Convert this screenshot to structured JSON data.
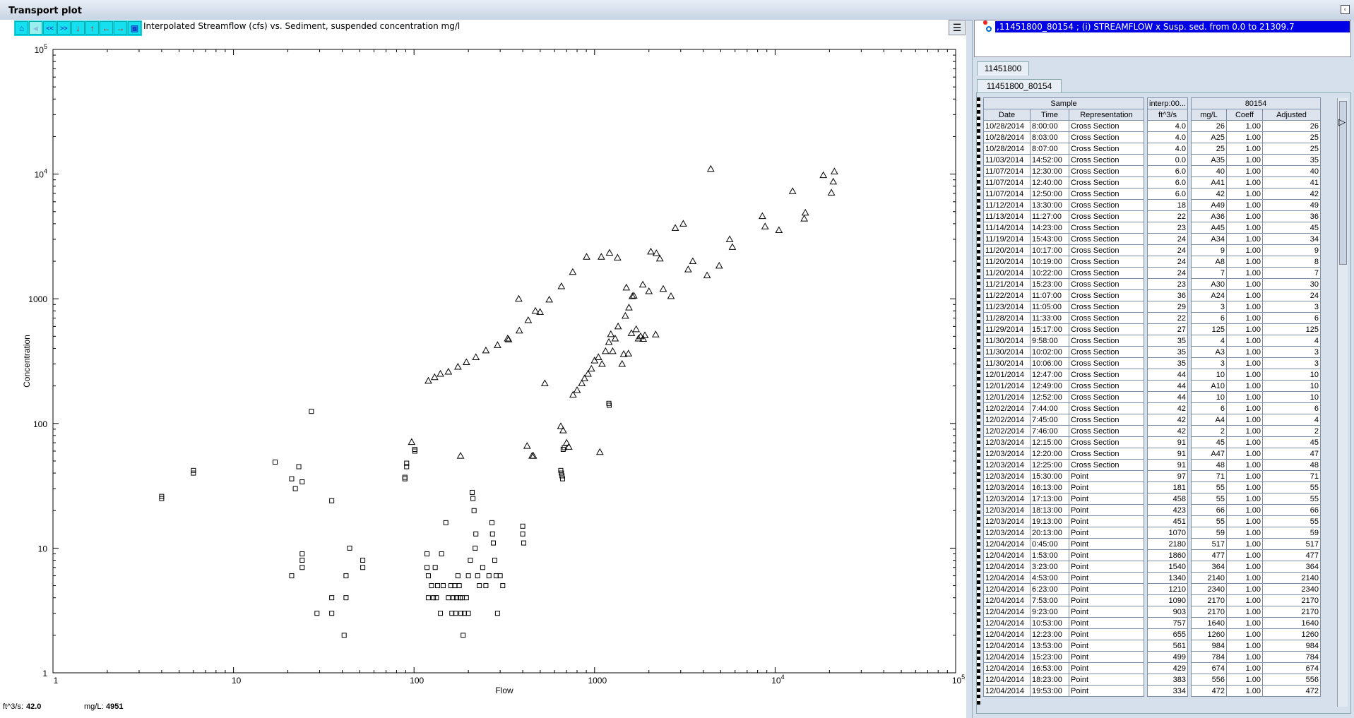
{
  "window": {
    "title": "Transport plot"
  },
  "toolbar": {
    "icons": [
      "home-icon",
      "back-icon",
      "first-page-icon",
      "last-page-icon",
      "down-arrow-icon",
      "up-arrow-icon",
      "left-arrow-icon",
      "right-arrow-icon",
      "save-icon"
    ],
    "labels": [
      "⌂",
      "◂",
      "<<",
      ">>",
      "↓",
      "↑",
      "←",
      "→",
      "▣"
    ]
  },
  "plot": {
    "title": "Interpolated Streamflow (cfs) vs. Sediment, suspended concentration mg/l"
  },
  "readout": {
    "x_label": "ft^3/s:",
    "x_value": "42.0",
    "y_label": "mg/L:",
    "y_value": "4951"
  },
  "series_list": {
    "selected": ",11451800_80154 ; (i) STREAMFLOW x Susp. sed. from 0.0 to 21309.7"
  },
  "tabs": {
    "station": "11451800",
    "series": "11451800_80154"
  },
  "table": {
    "group_headers": [
      "Sample",
      "interp:00...",
      "80154"
    ],
    "unit_headers": [
      "Date",
      "Time",
      "Representation",
      "ft^3/s",
      "mg/L",
      "Coeff",
      "Adjusted"
    ],
    "rows": [
      [
        "10/28/2014",
        "8:00:00",
        "Cross Section",
        "4.0",
        "26",
        "1.00",
        "26"
      ],
      [
        "10/28/2014",
        "8:03:00",
        "Cross Section",
        "4.0",
        "A25",
        "1.00",
        "25"
      ],
      [
        "10/28/2014",
        "8:07:00",
        "Cross Section",
        "4.0",
        "25",
        "1.00",
        "25"
      ],
      [
        "11/03/2014",
        "14:52:00",
        "Cross Section",
        "0.0",
        "A35",
        "1.00",
        "35"
      ],
      [
        "11/07/2014",
        "12:30:00",
        "Cross Section",
        "6.0",
        "40",
        "1.00",
        "40"
      ],
      [
        "11/07/2014",
        "12:40:00",
        "Cross Section",
        "6.0",
        "A41",
        "1.00",
        "41"
      ],
      [
        "11/07/2014",
        "12:50:00",
        "Cross Section",
        "6.0",
        "42",
        "1.00",
        "42"
      ],
      [
        "11/12/2014",
        "13:30:00",
        "Cross Section",
        "18",
        "A49",
        "1.00",
        "49"
      ],
      [
        "11/13/2014",
        "11:27:00",
        "Cross Section",
        "22",
        "A36",
        "1.00",
        "36"
      ],
      [
        "11/14/2014",
        "14:23:00",
        "Cross Section",
        "23",
        "A45",
        "1.00",
        "45"
      ],
      [
        "11/19/2014",
        "15:43:00",
        "Cross Section",
        "24",
        "A34",
        "1.00",
        "34"
      ],
      [
        "11/20/2014",
        "10:17:00",
        "Cross Section",
        "24",
        "9",
        "1.00",
        "9"
      ],
      [
        "11/20/2014",
        "10:19:00",
        "Cross Section",
        "24",
        "A8",
        "1.00",
        "8"
      ],
      [
        "11/20/2014",
        "10:22:00",
        "Cross Section",
        "24",
        "7",
        "1.00",
        "7"
      ],
      [
        "11/21/2014",
        "15:23:00",
        "Cross Section",
        "23",
        "A30",
        "1.00",
        "30"
      ],
      [
        "11/22/2014",
        "11:07:00",
        "Cross Section",
        "36",
        "A24",
        "1.00",
        "24"
      ],
      [
        "11/23/2014",
        "11:05:00",
        "Cross Section",
        "29",
        "3",
        "1.00",
        "3"
      ],
      [
        "11/28/2014",
        "11:33:00",
        "Cross Section",
        "22",
        "6",
        "1.00",
        "6"
      ],
      [
        "11/29/2014",
        "15:17:00",
        "Cross Section",
        "27",
        "125",
        "1.00",
        "125"
      ],
      [
        "11/30/2014",
        "9:58:00",
        "Cross Section",
        "35",
        "4",
        "1.00",
        "4"
      ],
      [
        "11/30/2014",
        "10:02:00",
        "Cross Section",
        "35",
        "A3",
        "1.00",
        "3"
      ],
      [
        "11/30/2014",
        "10:06:00",
        "Cross Section",
        "35",
        "3",
        "1.00",
        "3"
      ],
      [
        "12/01/2014",
        "12:47:00",
        "Cross Section",
        "44",
        "10",
        "1.00",
        "10"
      ],
      [
        "12/01/2014",
        "12:49:00",
        "Cross Section",
        "44",
        "A10",
        "1.00",
        "10"
      ],
      [
        "12/01/2014",
        "12:52:00",
        "Cross Section",
        "44",
        "10",
        "1.00",
        "10"
      ],
      [
        "12/02/2014",
        "7:44:00",
        "Cross Section",
        "42",
        "6",
        "1.00",
        "6"
      ],
      [
        "12/02/2014",
        "7:45:00",
        "Cross Section",
        "42",
        "A4",
        "1.00",
        "4"
      ],
      [
        "12/02/2014",
        "7:46:00",
        "Cross Section",
        "42",
        "2",
        "1.00",
        "2"
      ],
      [
        "12/03/2014",
        "12:15:00",
        "Cross Section",
        "91",
        "45",
        "1.00",
        "45"
      ],
      [
        "12/03/2014",
        "12:20:00",
        "Cross Section",
        "91",
        "A47",
        "1.00",
        "47"
      ],
      [
        "12/03/2014",
        "12:25:00",
        "Cross Section",
        "91",
        "48",
        "1.00",
        "48"
      ],
      [
        "12/03/2014",
        "15:30:00",
        "Point",
        "97",
        "71",
        "1.00",
        "71"
      ],
      [
        "12/03/2014",
        "16:13:00",
        "Point",
        "181",
        "55",
        "1.00",
        "55"
      ],
      [
        "12/03/2014",
        "17:13:00",
        "Point",
        "458",
        "55",
        "1.00",
        "55"
      ],
      [
        "12/03/2014",
        "18:13:00",
        "Point",
        "423",
        "66",
        "1.00",
        "66"
      ],
      [
        "12/03/2014",
        "19:13:00",
        "Point",
        "451",
        "55",
        "1.00",
        "55"
      ],
      [
        "12/03/2014",
        "20:13:00",
        "Point",
        "1070",
        "59",
        "1.00",
        "59"
      ],
      [
        "12/04/2014",
        "0:45:00",
        "Point",
        "2180",
        "517",
        "1.00",
        "517"
      ],
      [
        "12/04/2014",
        "1:53:00",
        "Point",
        "1860",
        "477",
        "1.00",
        "477"
      ],
      [
        "12/04/2014",
        "3:23:00",
        "Point",
        "1540",
        "364",
        "1.00",
        "364"
      ],
      [
        "12/04/2014",
        "4:53:00",
        "Point",
        "1340",
        "2140",
        "1.00",
        "2140"
      ],
      [
        "12/04/2014",
        "6:23:00",
        "Point",
        "1210",
        "2340",
        "1.00",
        "2340"
      ],
      [
        "12/04/2014",
        "7:53:00",
        "Point",
        "1090",
        "2170",
        "1.00",
        "2170"
      ],
      [
        "12/04/2014",
        "9:23:00",
        "Point",
        "903",
        "2170",
        "1.00",
        "2170"
      ],
      [
        "12/04/2014",
        "10:53:00",
        "Point",
        "757",
        "1640",
        "1.00",
        "1640"
      ],
      [
        "12/04/2014",
        "12:23:00",
        "Point",
        "655",
        "1260",
        "1.00",
        "1260"
      ],
      [
        "12/04/2014",
        "13:53:00",
        "Point",
        "561",
        "984",
        "1.00",
        "984"
      ],
      [
        "12/04/2014",
        "15:23:00",
        "Point",
        "499",
        "784",
        "1.00",
        "784"
      ],
      [
        "12/04/2014",
        "16:53:00",
        "Point",
        "429",
        "674",
        "1.00",
        "674"
      ],
      [
        "12/04/2014",
        "18:23:00",
        "Point",
        "383",
        "556",
        "1.00",
        "556"
      ],
      [
        "12/04/2014",
        "19:53:00",
        "Point",
        "334",
        "472",
        "1.00",
        "472"
      ]
    ]
  },
  "chart_data": {
    "type": "scatter",
    "xlabel": "Flow",
    "ylabel": "Concentration",
    "xscale": "log",
    "yscale": "log",
    "xlim": [
      1,
      100000
    ],
    "ylim": [
      1,
      100000
    ],
    "x_ticks": [
      "1",
      "10",
      "100",
      "1000",
      "10^4",
      "10^5"
    ],
    "y_ticks": [
      "1",
      "10",
      "100",
      "1000",
      "10^4",
      "10^5"
    ],
    "series": [
      {
        "marker": "square",
        "points": [
          [
            4.0,
            26
          ],
          [
            4.0,
            25
          ],
          [
            6.0,
            40
          ],
          [
            6.0,
            42
          ],
          [
            17,
            49
          ],
          [
            21,
            36
          ],
          [
            22,
            30
          ],
          [
            23,
            45
          ],
          [
            24,
            34
          ],
          [
            24,
            9
          ],
          [
            24,
            8
          ],
          [
            24,
            7
          ],
          [
            21,
            6
          ],
          [
            27,
            125
          ],
          [
            29,
            3
          ],
          [
            35,
            24
          ],
          [
            35,
            4
          ],
          [
            35,
            3
          ],
          [
            42,
            6
          ],
          [
            42,
            4
          ],
          [
            41,
            2
          ],
          [
            44,
            10
          ],
          [
            52,
            8
          ],
          [
            52,
            7
          ],
          [
            89,
            36
          ],
          [
            89,
            37
          ],
          [
            91,
            45
          ],
          [
            91,
            48
          ],
          [
            101,
            60
          ],
          [
            101,
            62
          ],
          [
            118,
            9
          ],
          [
            118,
            7
          ],
          [
            120,
            6
          ],
          [
            120,
            4
          ],
          [
            125,
            5
          ],
          [
            128,
            4
          ],
          [
            131,
            7
          ],
          [
            133,
            4
          ],
          [
            135,
            5
          ],
          [
            140,
            3
          ],
          [
            142,
            9
          ],
          [
            145,
            5
          ],
          [
            150,
            16
          ],
          [
            155,
            4
          ],
          [
            160,
            5
          ],
          [
            162,
            3
          ],
          [
            165,
            4
          ],
          [
            168,
            5
          ],
          [
            170,
            3
          ],
          [
            172,
            4
          ],
          [
            175,
            6
          ],
          [
            178,
            5
          ],
          [
            180,
            4
          ],
          [
            182,
            3
          ],
          [
            185,
            4
          ],
          [
            187,
            2
          ],
          [
            190,
            3
          ],
          [
            195,
            4
          ],
          [
            200,
            6
          ],
          [
            200,
            3
          ],
          [
            205,
            8
          ],
          [
            210,
            28
          ],
          [
            212,
            25
          ],
          [
            215,
            20
          ],
          [
            218,
            10
          ],
          [
            220,
            13
          ],
          [
            225,
            6
          ],
          [
            230,
            5
          ],
          [
            240,
            7
          ],
          [
            250,
            5
          ],
          [
            260,
            6
          ],
          [
            270,
            16
          ],
          [
            272,
            13
          ],
          [
            275,
            11
          ],
          [
            280,
            8
          ],
          [
            285,
            6
          ],
          [
            290,
            3
          ],
          [
            300,
            6
          ],
          [
            310,
            5
          ],
          [
            400,
            15
          ],
          [
            400,
            13
          ],
          [
            405,
            11
          ],
          [
            650,
            42
          ],
          [
            655,
            40
          ],
          [
            660,
            38
          ],
          [
            665,
            36
          ],
          [
            670,
            62
          ],
          [
            680,
            64
          ],
          [
            1200,
            145
          ],
          [
            1205,
            140
          ]
        ]
      },
      {
        "marker": "triangle",
        "points": [
          [
            97,
            71
          ],
          [
            181,
            55
          ],
          [
            458,
            55
          ],
          [
            423,
            66
          ],
          [
            451,
            55
          ],
          [
            1070,
            59
          ],
          [
            2180,
            517
          ],
          [
            1860,
            477
          ],
          [
            1540,
            364
          ],
          [
            1340,
            2140
          ],
          [
            1210,
            2340
          ],
          [
            1090,
            2170
          ],
          [
            903,
            2170
          ],
          [
            757,
            1640
          ],
          [
            655,
            1260
          ],
          [
            561,
            984
          ],
          [
            499,
            784
          ],
          [
            429,
            674
          ],
          [
            383,
            556
          ],
          [
            334,
            472
          ],
          [
            120,
            220
          ],
          [
            130,
            235
          ],
          [
            140,
            250
          ],
          [
            155,
            260
          ],
          [
            175,
            285
          ],
          [
            195,
            310
          ],
          [
            220,
            340
          ],
          [
            250,
            385
          ],
          [
            290,
            425
          ],
          [
            330,
            480
          ],
          [
            380,
            1000
          ],
          [
            470,
            800
          ],
          [
            530,
            210
          ],
          [
            650,
            95
          ],
          [
            670,
            88
          ],
          [
            700,
            70
          ],
          [
            720,
            65
          ],
          [
            760,
            170
          ],
          [
            800,
            185
          ],
          [
            850,
            210
          ],
          [
            880,
            230
          ],
          [
            920,
            250
          ],
          [
            960,
            275
          ],
          [
            1000,
            320
          ],
          [
            1050,
            340
          ],
          [
            1100,
            300
          ],
          [
            1150,
            380
          ],
          [
            1200,
            450
          ],
          [
            1230,
            520
          ],
          [
            1260,
            380
          ],
          [
            1300,
            480
          ],
          [
            1350,
            600
          ],
          [
            1420,
            300
          ],
          [
            1450,
            360
          ],
          [
            1480,
            730
          ],
          [
            1500,
            1230
          ],
          [
            1550,
            850
          ],
          [
            1600,
            530
          ],
          [
            1620,
            1050
          ],
          [
            1650,
            1060
          ],
          [
            1700,
            570
          ],
          [
            1750,
            480
          ],
          [
            1800,
            500
          ],
          [
            1850,
            1300
          ],
          [
            1900,
            510
          ],
          [
            2000,
            1150
          ],
          [
            2050,
            2390
          ],
          [
            2200,
            2320
          ],
          [
            2300,
            2100
          ],
          [
            2400,
            1200
          ],
          [
            2650,
            1050
          ],
          [
            2800,
            3700
          ],
          [
            3100,
            4000
          ],
          [
            3300,
            1720
          ],
          [
            3500,
            2000
          ],
          [
            4200,
            1540
          ],
          [
            4400,
            11000
          ],
          [
            4900,
            1840
          ],
          [
            5600,
            3000
          ],
          [
            5800,
            2600
          ],
          [
            8500,
            4600
          ],
          [
            8800,
            3800
          ],
          [
            10500,
            3550
          ],
          [
            12500,
            7300
          ],
          [
            14500,
            4400
          ],
          [
            14700,
            4900
          ],
          [
            18500,
            9800
          ],
          [
            20500,
            7100
          ],
          [
            21000,
            8700
          ],
          [
            21300,
            10500
          ]
        ]
      }
    ]
  }
}
